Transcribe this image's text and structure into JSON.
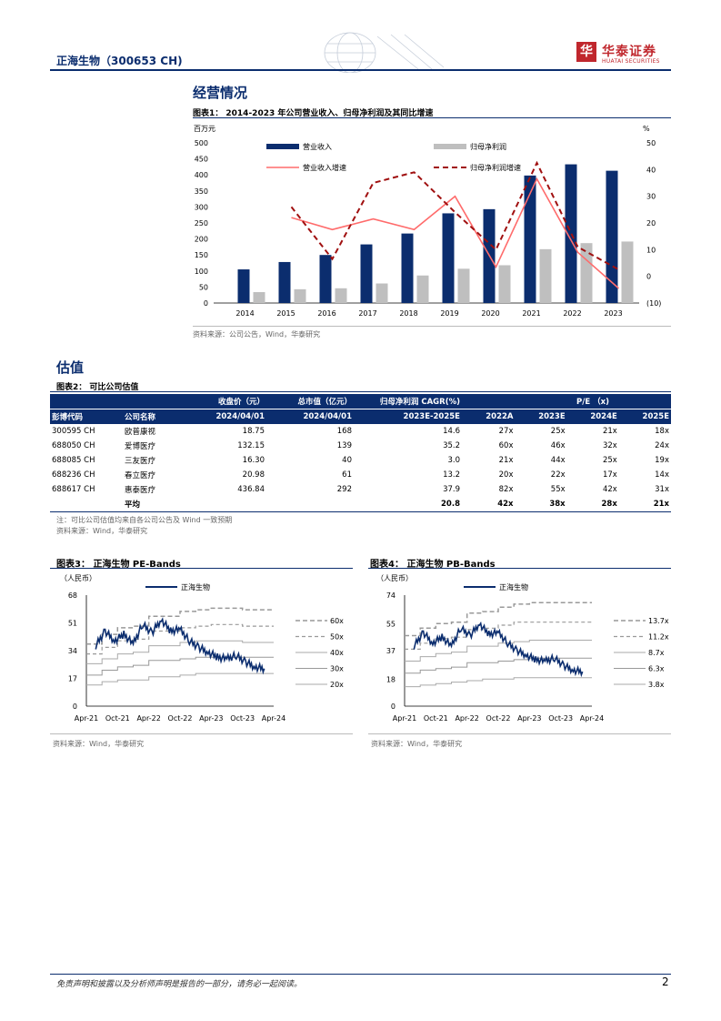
{
  "header": {
    "title": "正海生物（300653 CH)",
    "logo_glyph": "华",
    "logo_cn": "华泰证券",
    "logo_en": "HUATAI SECURITIES"
  },
  "section1": {
    "title": "经营情况"
  },
  "fig1": {
    "title": "图表1：  2014-2023 年公司营业收入、归母净利润及其同比增速",
    "left_unit": "百万元",
    "right_unit": "%",
    "source": "资料来源：公司公告，Wind，华泰研究"
  },
  "section2": {
    "title": "估值"
  },
  "fig2": {
    "title": "图表2：  可比公司估值",
    "headers": {
      "price": "收盘价（元）",
      "mktcap": "总市值（亿元）",
      "cagr": "归母净利润 CAGR(%)",
      "pe": "P/E （x)",
      "code": "彭博代码",
      "name": "公司名称",
      "price_date": "2024/04/01",
      "mktcap_date": "2024/04/01",
      "cagr_period": "2023E-2025E",
      "y1": "2022A",
      "y2": "2023E",
      "y3": "2024E",
      "y4": "2025E"
    },
    "rows": [
      {
        "code": "300595 CH",
        "name": "欧普康视",
        "price": "18.75",
        "mktcap": "168",
        "cagr": "14.6",
        "p1": "27x",
        "p2": "25x",
        "p3": "21x",
        "p4": "18x"
      },
      {
        "code": "688050 CH",
        "name": "爱博医疗",
        "price": "132.15",
        "mktcap": "139",
        "cagr": "35.2",
        "p1": "60x",
        "p2": "46x",
        "p3": "32x",
        "p4": "24x"
      },
      {
        "code": "688085 CH",
        "name": "三友医疗",
        "price": "16.30",
        "mktcap": "40",
        "cagr": "3.0",
        "p1": "21x",
        "p2": "44x",
        "p3": "25x",
        "p4": "19x"
      },
      {
        "code": "688236 CH",
        "name": "春立医疗",
        "price": "20.98",
        "mktcap": "61",
        "cagr": "13.2",
        "p1": "20x",
        "p2": "22x",
        "p3": "17x",
        "p4": "14x"
      },
      {
        "code": "688617 CH",
        "name": "惠泰医疗",
        "price": "436.84",
        "mktcap": "292",
        "cagr": "37.9",
        "p1": "82x",
        "p2": "55x",
        "p3": "42x",
        "p4": "31x"
      }
    ],
    "avg": {
      "label": "平均",
      "cagr": "20.8",
      "p1": "42x",
      "p2": "38x",
      "p3": "28x",
      "p4": "21x"
    },
    "note": "注：可比公司估值均来自各公司公告及 Wind 一致预期",
    "source": "资料来源：Wind，华泰研究"
  },
  "fig3": {
    "title": "图表3：  正海生物 PE-Bands",
    "unit": "（人民币）",
    "source": "资料来源：Wind，华泰研究"
  },
  "fig4": {
    "title": "图表4：  正海生物 PB-Bands",
    "unit": "（人民币）",
    "source": "资料来源：Wind，华泰研究"
  },
  "footer": {
    "disclaimer": "免责声明和披露以及分析师声明是报告的一部分，请务必一起阅读。",
    "page": "2"
  },
  "colors": {
    "navy": "#0b2d6e",
    "gray": "#bfbfbf",
    "red": "#ff6b6b",
    "darkred": "#a01010"
  },
  "chart_data": [
    {
      "type": "bar",
      "categories": [
        "2014",
        "2015",
        "2016",
        "2017",
        "2018",
        "2019",
        "2020",
        "2021",
        "2022",
        "2023"
      ],
      "series": [
        {
          "name": "营业收入",
          "axis": "left",
          "kind": "bar",
          "values": [
            105,
            128,
            150,
            183,
            217,
            280,
            293,
            398,
            433,
            413
          ]
        },
        {
          "name": "归母净利润",
          "axis": "left",
          "kind": "bar",
          "values": [
            34,
            43,
            46,
            61,
            86,
            107,
            118,
            168,
            187,
            192
          ]
        },
        {
          "name": "营业收入增速",
          "axis": "right",
          "kind": "line",
          "values": [
            null,
            22,
            17.5,
            21.5,
            17.5,
            30,
            3.5,
            36.5,
            9,
            -4.5
          ]
        },
        {
          "name": "归母净利润增速",
          "axis": "right",
          "kind": "dashed-line",
          "values": [
            null,
            26,
            6.5,
            35,
            39,
            24,
            10,
            42.5,
            11,
            2.5
          ]
        }
      ],
      "yticks_left": [
        "0",
        "50",
        "100",
        "150",
        "200",
        "250",
        "300",
        "350",
        "400",
        "450",
        "500"
      ],
      "yticks_right": [
        "(10)",
        "0",
        "10",
        "20",
        "30",
        "40",
        "50"
      ],
      "ylim_left": [
        0,
        500
      ],
      "ylim_right": [
        -10,
        50
      ],
      "legend": "top"
    },
    {
      "type": "line",
      "x_ticks": [
        "Apr-21",
        "Oct-21",
        "Apr-22",
        "Oct-22",
        "Apr-23",
        "Oct-23",
        "Apr-24"
      ],
      "y_ticks": [
        "0",
        "17",
        "34",
        "51",
        "68"
      ],
      "ylim": [
        0,
        68
      ],
      "legend": {
        "price": "正海生物"
      },
      "bands": [
        {
          "name": "60x",
          "values": [
            38,
            44,
            48,
            49,
            55,
            55,
            58,
            59,
            60,
            60,
            59,
            59,
            59
          ]
        },
        {
          "name": "50x",
          "values": [
            32,
            36,
            40,
            41,
            46,
            46,
            48,
            49,
            50,
            50,
            49,
            49,
            49
          ]
        },
        {
          "name": "40x",
          "values": [
            26,
            29,
            32,
            33,
            37,
            37,
            39,
            40,
            40,
            40,
            39,
            39,
            39
          ]
        },
        {
          "name": "30x",
          "values": [
            19,
            22,
            24,
            25,
            28,
            28,
            29,
            30,
            30,
            30,
            30,
            30,
            30
          ]
        },
        {
          "name": "20x",
          "values": [
            13,
            15,
            16,
            16,
            18,
            18,
            19,
            20,
            20,
            20,
            20,
            20,
            20
          ]
        }
      ],
      "price": [
        37,
        46,
        40,
        44,
        38,
        50,
        45,
        53,
        46,
        47,
        40,
        36,
        33,
        30,
        29,
        31,
        27,
        24,
        23
      ]
    },
    {
      "type": "line",
      "x_ticks": [
        "Apr-21",
        "Oct-21",
        "Apr-22",
        "Oct-22",
        "Apr-23",
        "Oct-23",
        "Apr-24"
      ],
      "y_ticks": [
        "0",
        "18",
        "37",
        "55",
        "74"
      ],
      "ylim": [
        0,
        74
      ],
      "legend": {
        "price": "正海生物"
      },
      "bands": [
        {
          "name": "13.7x",
          "values": [
            47,
            52,
            55,
            56,
            62,
            63,
            66,
            68,
            69,
            69,
            69,
            69,
            69
          ]
        },
        {
          "name": "11.2x",
          "values": [
            38,
            42,
            45,
            46,
            51,
            52,
            54,
            56,
            56,
            56,
            56,
            56,
            56
          ]
        },
        {
          "name": "8.7x",
          "values": [
            30,
            33,
            35,
            36,
            40,
            40,
            42,
            43,
            44,
            44,
            44,
            44,
            44
          ]
        },
        {
          "name": "6.3x",
          "values": [
            22,
            24,
            25,
            26,
            29,
            29,
            30,
            31,
            32,
            32,
            32,
            32,
            32
          ]
        },
        {
          "name": "3.8x",
          "values": [
            13,
            14,
            15,
            16,
            17,
            18,
            18,
            19,
            19,
            19,
            19,
            19,
            19
          ]
        }
      ],
      "price": [
        40,
        49,
        42,
        46,
        40,
        52,
        47,
        55,
        48,
        49,
        42,
        37,
        34,
        31,
        30,
        32,
        27,
        24,
        23
      ]
    }
  ]
}
